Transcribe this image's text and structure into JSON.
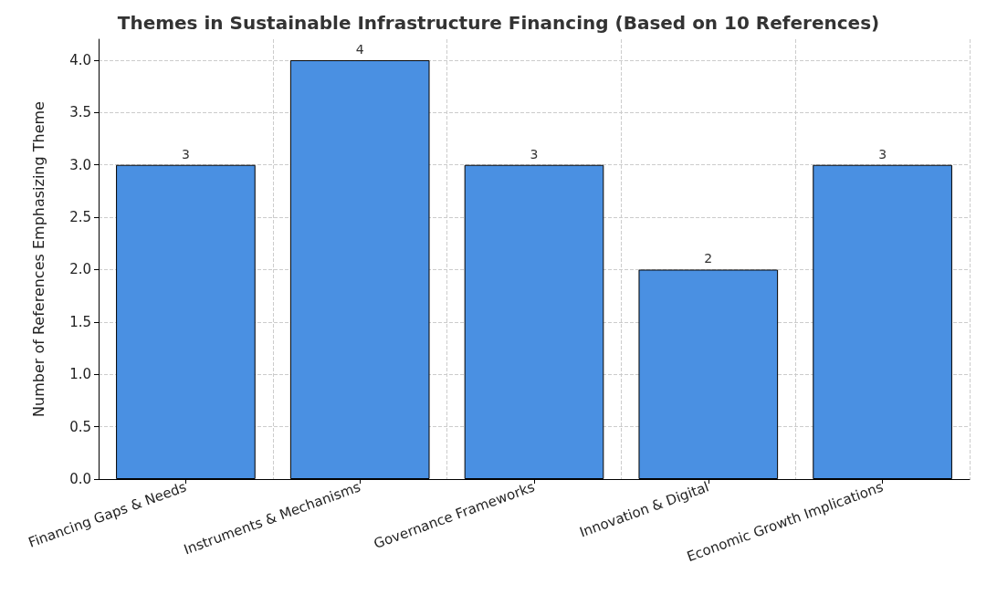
{
  "chart_data": {
    "type": "bar",
    "title": "Themes in Sustainable Infrastructure Financing (Based on 10 References)",
    "ylabel": "Number of References Emphasizing Theme",
    "categories": [
      "Financing Gaps & Needs",
      "Instruments & Mechanisms",
      "Governance Frameworks",
      "Innovation & Digital",
      "Economic Growth Implications"
    ],
    "values": [
      3,
      4,
      3,
      2,
      3
    ],
    "color": "#4a90e2",
    "ylim": [
      0,
      4.2
    ],
    "yticks": [
      {
        "value": 0,
        "label": "0.0"
      },
      {
        "value": 0.5,
        "label": "0.5"
      },
      {
        "value": 1,
        "label": "1.0"
      },
      {
        "value": 1.5,
        "label": "1.5"
      },
      {
        "value": 2,
        "label": "2.0"
      },
      {
        "value": 2.5,
        "label": "2.5"
      },
      {
        "value": 3,
        "label": "3.0"
      },
      {
        "value": 3.5,
        "label": "3.5"
      },
      {
        "value": 4,
        "label": "4.0"
      }
    ],
    "grid": true,
    "data_labels": true
  }
}
